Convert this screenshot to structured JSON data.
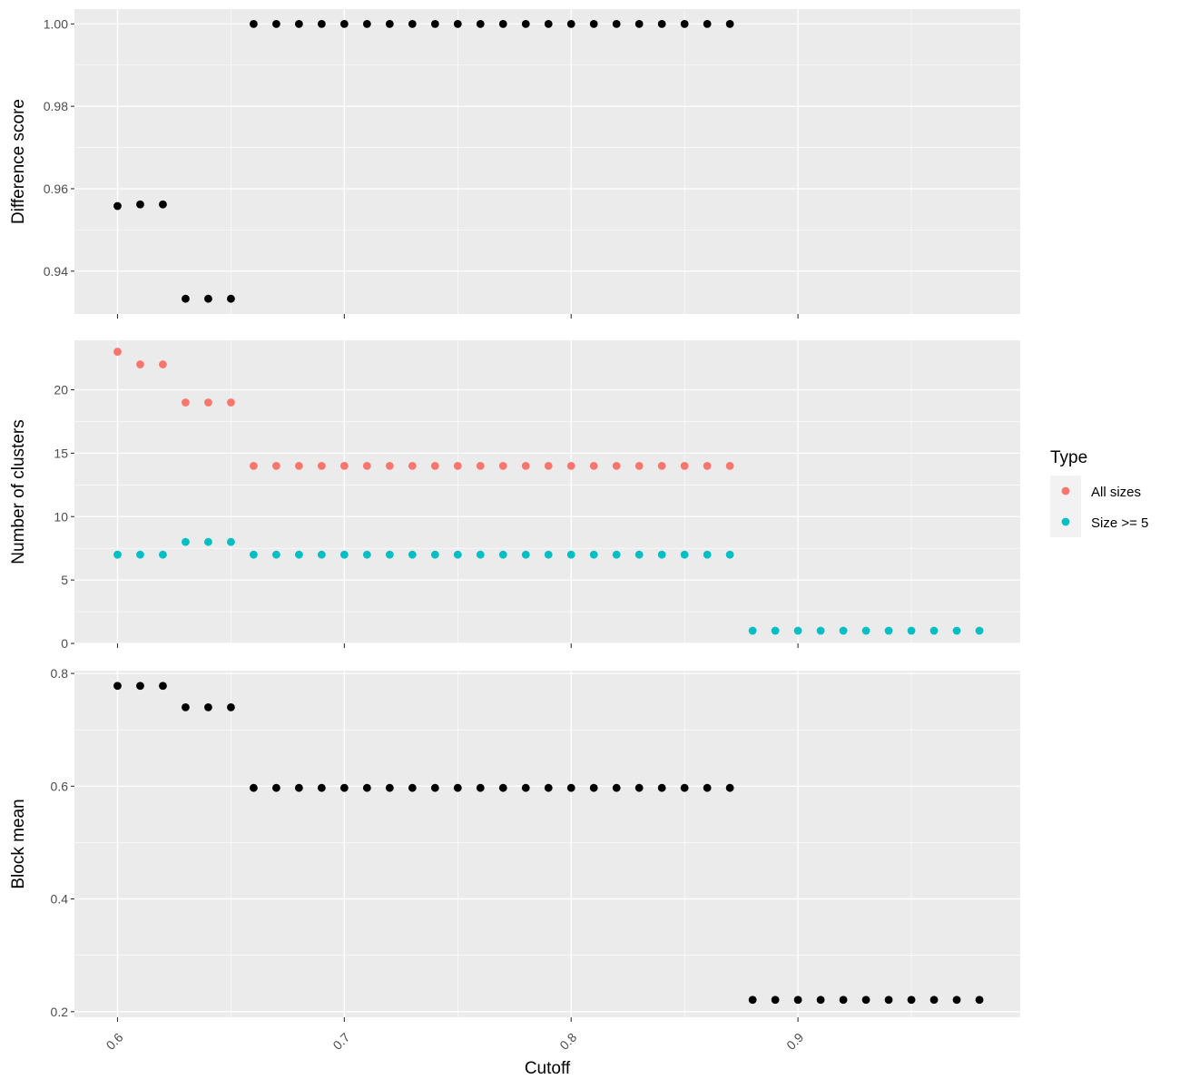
{
  "chart_data": {
    "type": "scatter",
    "x_title": "Cutoff",
    "x_ticks": [
      0.6,
      0.7,
      0.8,
      0.9
    ],
    "x_tick_labels": [
      "0.6",
      "0.7",
      "0.8",
      "0.9"
    ],
    "x_range": [
      0.581,
      0.998
    ],
    "grid": true,
    "legend": {
      "title": "Type",
      "placement": "right",
      "items": [
        {
          "label": "All sizes",
          "color": "#F8766D"
        },
        {
          "label": "Size >= 5",
          "color": "#00BFC4"
        }
      ]
    },
    "panels": [
      {
        "id": "difference",
        "ylabel": "Difference score",
        "ylim": [
          0.9296,
          1.0036
        ],
        "y_ticks": [
          0.94,
          0.96,
          0.98,
          1.0
        ],
        "y_tick_labels": [
          "0.94",
          "0.96",
          "0.98",
          "1.00"
        ],
        "series": [
          {
            "color": "#000000",
            "points": [
              [
                0.6,
                0.9558
              ],
              [
                0.61,
                0.9562
              ],
              [
                0.62,
                0.9562
              ],
              [
                0.63,
                0.9333
              ],
              [
                0.64,
                0.9333
              ],
              [
                0.65,
                0.9333
              ],
              [
                0.66,
                1.0
              ],
              [
                0.67,
                1.0
              ],
              [
                0.68,
                1.0
              ],
              [
                0.69,
                1.0
              ],
              [
                0.7,
                1.0
              ],
              [
                0.71,
                1.0
              ],
              [
                0.72,
                1.0
              ],
              [
                0.73,
                1.0
              ],
              [
                0.74,
                1.0
              ],
              [
                0.75,
                1.0
              ],
              [
                0.76,
                1.0
              ],
              [
                0.77,
                1.0
              ],
              [
                0.78,
                1.0
              ],
              [
                0.79,
                1.0
              ],
              [
                0.8,
                1.0
              ],
              [
                0.81,
                1.0
              ],
              [
                0.82,
                1.0
              ],
              [
                0.83,
                1.0
              ],
              [
                0.84,
                1.0
              ],
              [
                0.85,
                1.0
              ],
              [
                0.86,
                1.0
              ],
              [
                0.87,
                1.0
              ]
            ]
          }
        ]
      },
      {
        "id": "clusters",
        "ylabel": "Number of clusters",
        "ylim": [
          0,
          23.9
        ],
        "y_ticks": [
          0,
          5,
          10,
          15,
          20
        ],
        "y_tick_labels": [
          "0",
          "5",
          "10",
          "15",
          "20"
        ],
        "series": [
          {
            "name": "All sizes",
            "color": "#F8766D",
            "points": [
              [
                0.6,
                23
              ],
              [
                0.61,
                22
              ],
              [
                0.62,
                22
              ],
              [
                0.63,
                19
              ],
              [
                0.64,
                19
              ],
              [
                0.65,
                19
              ],
              [
                0.66,
                14
              ],
              [
                0.67,
                14
              ],
              [
                0.68,
                14
              ],
              [
                0.69,
                14
              ],
              [
                0.7,
                14
              ],
              [
                0.71,
                14
              ],
              [
                0.72,
                14
              ],
              [
                0.73,
                14
              ],
              [
                0.74,
                14
              ],
              [
                0.75,
                14
              ],
              [
                0.76,
                14
              ],
              [
                0.77,
                14
              ],
              [
                0.78,
                14
              ],
              [
                0.79,
                14
              ],
              [
                0.8,
                14
              ],
              [
                0.81,
                14
              ],
              [
                0.82,
                14
              ],
              [
                0.83,
                14
              ],
              [
                0.84,
                14
              ],
              [
                0.85,
                14
              ],
              [
                0.86,
                14
              ],
              [
                0.87,
                14
              ]
            ]
          },
          {
            "name": "Size >= 5",
            "color": "#00BFC4",
            "points": [
              [
                0.6,
                7
              ],
              [
                0.61,
                7
              ],
              [
                0.62,
                7
              ],
              [
                0.63,
                8
              ],
              [
                0.64,
                8
              ],
              [
                0.65,
                8
              ],
              [
                0.66,
                7
              ],
              [
                0.67,
                7
              ],
              [
                0.68,
                7
              ],
              [
                0.69,
                7
              ],
              [
                0.7,
                7
              ],
              [
                0.71,
                7
              ],
              [
                0.72,
                7
              ],
              [
                0.73,
                7
              ],
              [
                0.74,
                7
              ],
              [
                0.75,
                7
              ],
              [
                0.76,
                7
              ],
              [
                0.77,
                7
              ],
              [
                0.78,
                7
              ],
              [
                0.79,
                7
              ],
              [
                0.8,
                7
              ],
              [
                0.81,
                7
              ],
              [
                0.82,
                7
              ],
              [
                0.83,
                7
              ],
              [
                0.84,
                7
              ],
              [
                0.85,
                7
              ],
              [
                0.86,
                7
              ],
              [
                0.87,
                7
              ],
              [
                0.88,
                1
              ],
              [
                0.89,
                1
              ],
              [
                0.9,
                1
              ],
              [
                0.91,
                1
              ],
              [
                0.92,
                1
              ],
              [
                0.93,
                1
              ],
              [
                0.94,
                1
              ],
              [
                0.95,
                1
              ],
              [
                0.96,
                1
              ],
              [
                0.97,
                1
              ],
              [
                0.98,
                1
              ]
            ]
          }
        ]
      },
      {
        "id": "blockmean",
        "ylabel": "Block mean",
        "ylim": [
          0.19,
          0.805
        ],
        "y_ticks": [
          0.2,
          0.4,
          0.6,
          0.8
        ],
        "y_tick_labels": [
          "0.2",
          "0.4",
          "0.6",
          "0.8"
        ],
        "series": [
          {
            "color": "#000000",
            "points": [
              [
                0.6,
                0.778
              ],
              [
                0.61,
                0.778
              ],
              [
                0.62,
                0.778
              ],
              [
                0.63,
                0.74
              ],
              [
                0.64,
                0.74
              ],
              [
                0.65,
                0.74
              ],
              [
                0.66,
                0.597
              ],
              [
                0.67,
                0.597
              ],
              [
                0.68,
                0.597
              ],
              [
                0.69,
                0.597
              ],
              [
                0.7,
                0.597
              ],
              [
                0.71,
                0.597
              ],
              [
                0.72,
                0.597
              ],
              [
                0.73,
                0.597
              ],
              [
                0.74,
                0.597
              ],
              [
                0.75,
                0.597
              ],
              [
                0.76,
                0.597
              ],
              [
                0.77,
                0.597
              ],
              [
                0.78,
                0.597
              ],
              [
                0.79,
                0.597
              ],
              [
                0.8,
                0.597
              ],
              [
                0.81,
                0.597
              ],
              [
                0.82,
                0.597
              ],
              [
                0.83,
                0.597
              ],
              [
                0.84,
                0.597
              ],
              [
                0.85,
                0.597
              ],
              [
                0.86,
                0.597
              ],
              [
                0.87,
                0.597
              ],
              [
                0.88,
                0.221
              ],
              [
                0.89,
                0.221
              ],
              [
                0.9,
                0.221
              ],
              [
                0.91,
                0.221
              ],
              [
                0.92,
                0.221
              ],
              [
                0.93,
                0.221
              ],
              [
                0.94,
                0.221
              ],
              [
                0.95,
                0.221
              ],
              [
                0.96,
                0.221
              ],
              [
                0.97,
                0.221
              ],
              [
                0.98,
                0.221
              ]
            ]
          }
        ]
      }
    ]
  }
}
